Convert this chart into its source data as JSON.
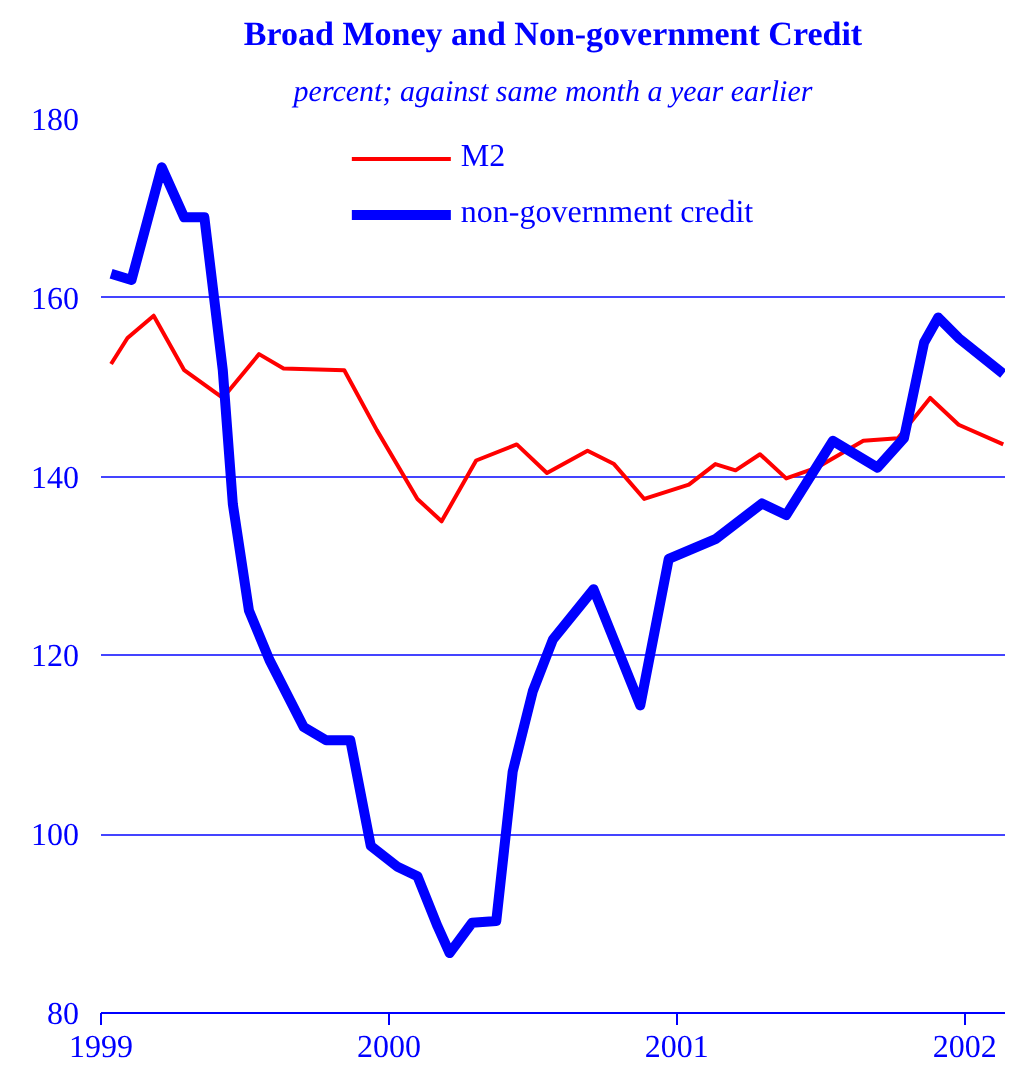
{
  "chart_data": {
    "type": "line",
    "title": "Broad Money and Non-government Credit",
    "subtitle": "percent; against same month a year earlier",
    "xlim": [
      1999,
      2002.14
    ],
    "xticks": [
      1999,
      2000,
      2001,
      2002
    ],
    "ylim": [
      80,
      180
    ],
    "yticks": [
      80,
      100,
      120,
      140,
      160,
      180
    ],
    "grid": "y",
    "legend": "top",
    "series": [
      {
        "name": "M2",
        "color": "#ff0000",
        "x": [
          1999.035,
          1999.092,
          1999.183,
          1999.289,
          1999.423,
          1999.549,
          1999.634,
          1999.845,
          1999.958,
          2000.099,
          2000.183,
          2000.303,
          2000.444,
          2000.549,
          2000.69,
          2000.782,
          2000.887,
          2001.042,
          2001.134,
          2001.204,
          2001.289,
          2001.38,
          2001.486,
          2001.648,
          2001.768,
          2001.88,
          2001.979,
          2002.134
        ],
        "values": [
          152.6,
          155.5,
          158,
          151.9,
          148.8,
          153.7,
          152.1,
          151.9,
          145.2,
          137.5,
          135,
          141.8,
          143.6,
          140.4,
          142.9,
          141.4,
          137.5,
          139.1,
          141.4,
          140.7,
          142.5,
          139.8,
          141,
          144,
          144.3,
          148.8,
          145.8,
          143.6
        ]
      },
      {
        "name": "non-government credit",
        "color": "#0000ff",
        "x": [
          1999.035,
          1999.106,
          1999.211,
          1999.289,
          1999.359,
          1999.423,
          1999.458,
          1999.514,
          1999.585,
          1999.704,
          1999.782,
          1999.866,
          1999.937,
          2000.028,
          2000.099,
          2000.169,
          2000.211,
          2000.289,
          2000.373,
          2000.43,
          2000.5,
          2000.57,
          2000.711,
          2000.873,
          2000.972,
          2001.134,
          2001.296,
          2001.38,
          2001.542,
          2001.697,
          2001.789,
          2001.859,
          2001.908,
          2001.979,
          2002.134
        ],
        "values": [
          162.7,
          162,
          174.6,
          169,
          169,
          151.9,
          136.9,
          125,
          119.5,
          112,
          110.5,
          110.5,
          98.7,
          96.4,
          95.3,
          89.7,
          86.7,
          90.1,
          90.3,
          107,
          116,
          121.8,
          127.4,
          114.4,
          130.8,
          133,
          137,
          135.7,
          144,
          141,
          144.3,
          155,
          157.8,
          155.5,
          151.5
        ]
      }
    ]
  }
}
